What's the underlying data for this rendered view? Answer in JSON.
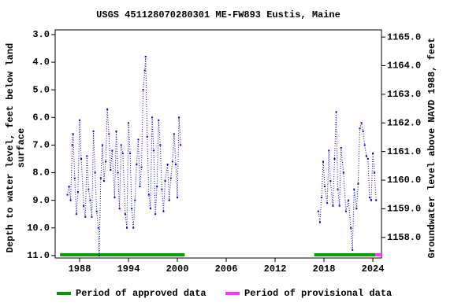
{
  "chart_data": {
    "type": "line",
    "title": "USGS 451128070280301 ME-FW893 Eustis, Maine",
    "ylabel": [
      "Depth to water level, feet below land",
      "surface"
    ],
    "y2label": "Groundwater level above NAVD 1988, feet",
    "xlim": [
      1985.0,
      2025.06
    ],
    "xticks": [
      1988,
      1994,
      2000,
      2006,
      2012,
      2018,
      2024
    ],
    "ylim": [
      2.83,
      11.09
    ],
    "y_inverted": true,
    "yticks": [
      {
        "value": 3,
        "label": "3.0"
      },
      {
        "value": 4,
        "label": "4.0"
      },
      {
        "value": 5,
        "label": "5.0"
      },
      {
        "value": 6,
        "label": "6.0"
      },
      {
        "value": 7,
        "label": "7.0"
      },
      {
        "value": 8,
        "label": "8.0"
      },
      {
        "value": 9,
        "label": "9.0"
      },
      {
        "value": 10,
        "label": "10.0"
      },
      {
        "value": 11,
        "label": "11.0"
      }
    ],
    "y2lim": [
      1157.28,
      1165.25
    ],
    "y2ticks": [
      {
        "value": 1158,
        "label": "1158.0"
      },
      {
        "value": 1159,
        "label": "1159.0"
      },
      {
        "value": 1160,
        "label": "1160.0"
      },
      {
        "value": 1161,
        "label": "1161.0"
      },
      {
        "value": 1162,
        "label": "1162.0"
      },
      {
        "value": 1163,
        "label": "1163.0"
      },
      {
        "value": 1164,
        "label": "1164.0"
      },
      {
        "value": 1165,
        "label": "1165.0"
      }
    ],
    "x": [
      1986.5,
      1986.7,
      1986.9,
      1987.1,
      1987.2,
      1987.4,
      1987.6,
      1987.8,
      1988.0,
      1988.2,
      1988.5,
      1988.7,
      1988.9,
      1989.1,
      1989.3,
      1989.5,
      1989.7,
      1989.9,
      1990.1,
      1990.3,
      1990.4,
      1990.6,
      1990.8,
      1991.0,
      1991.2,
      1991.4,
      1991.6,
      1991.8,
      1992.0,
      1992.3,
      1992.5,
      1992.7,
      1992.9,
      1993.1,
      1993.3,
      1993.6,
      1993.8,
      1994.0,
      1994.2,
      1994.4,
      1994.6,
      1994.8,
      1995.0,
      1995.2,
      1995.4,
      1995.6,
      1995.8,
      1996.0,
      1996.1,
      1996.3,
      1996.5,
      1996.7,
      1996.9,
      1997.1,
      1997.3,
      1997.5,
      1997.7,
      1997.9,
      1998.1,
      1998.3,
      1998.5,
      1998.8,
      1999.0,
      1999.2,
      1999.4,
      1999.6,
      1999.8,
      2000.0,
      2000.2,
      2000.4,
      2009.0,
      2017.3,
      2017.5,
      2017.7,
      2017.9,
      2018.1,
      2018.4,
      2018.6,
      2018.8,
      2019.1,
      2019.3,
      2019.5,
      2019.7,
      2019.9,
      2020.1,
      2020.4,
      2020.7,
      2021.0,
      2021.3,
      2021.5,
      2021.7,
      2022.0,
      2022.2,
      2022.4,
      2022.6,
      2022.8,
      2023.0,
      2023.2,
      2023.4,
      2023.6,
      2023.8,
      2024.0,
      2024.2,
      2024.4
    ],
    "series": [
      {
        "color": "#0000cc",
        "values": [
          8.8,
          8.5,
          9.0,
          7.0,
          6.6,
          8.2,
          9.5,
          8.7,
          6.1,
          7.5,
          9.2,
          9.6,
          7.4,
          8.6,
          9.0,
          9.6,
          6.5,
          8.0,
          9.4,
          10.0,
          11.0,
          8.2,
          7.0,
          8.3,
          7.6,
          5.7,
          6.6,
          7.9,
          7.2,
          8.9,
          6.5,
          8.0,
          9.3,
          7.0,
          7.3,
          9.5,
          10.0,
          6.2,
          7.3,
          9.3,
          10.0,
          9.0,
          7.7,
          6.8,
          8.5,
          7.8,
          5.0,
          4.3,
          3.8,
          6.7,
          8.8,
          9.3,
          6.0,
          7.2,
          9.5,
          8.5,
          6.1,
          7.0,
          8.6,
          9.4,
          8.3,
          7.7,
          9.0,
          8.2,
          7.6,
          6.6,
          7.7,
          8.9,
          6.0,
          7.0,
          null,
          9.4,
          9.8,
          8.9,
          7.6,
          8.5,
          9.1,
          7.2,
          8.3,
          9.2,
          7.5,
          5.8,
          8.6,
          9.2,
          7.1,
          8.0,
          9.4,
          9.0,
          10.0,
          10.8,
          8.6,
          9.3,
          8.4,
          6.4,
          6.2,
          6.5,
          7.0,
          7.4,
          7.5,
          8.9,
          9.0,
          7.3,
          8.0,
          9.0
        ]
      }
    ],
    "periods": [
      {
        "name": "Period of approved data",
        "color": "#009900",
        "ranges": [
          [
            1985.6,
            2000.9
          ],
          [
            2016.8,
            2024.3
          ]
        ]
      },
      {
        "name": "Period of provisional data",
        "color": "#ff33ff",
        "ranges": [
          [
            2024.3,
            2025.06
          ]
        ]
      }
    ]
  }
}
